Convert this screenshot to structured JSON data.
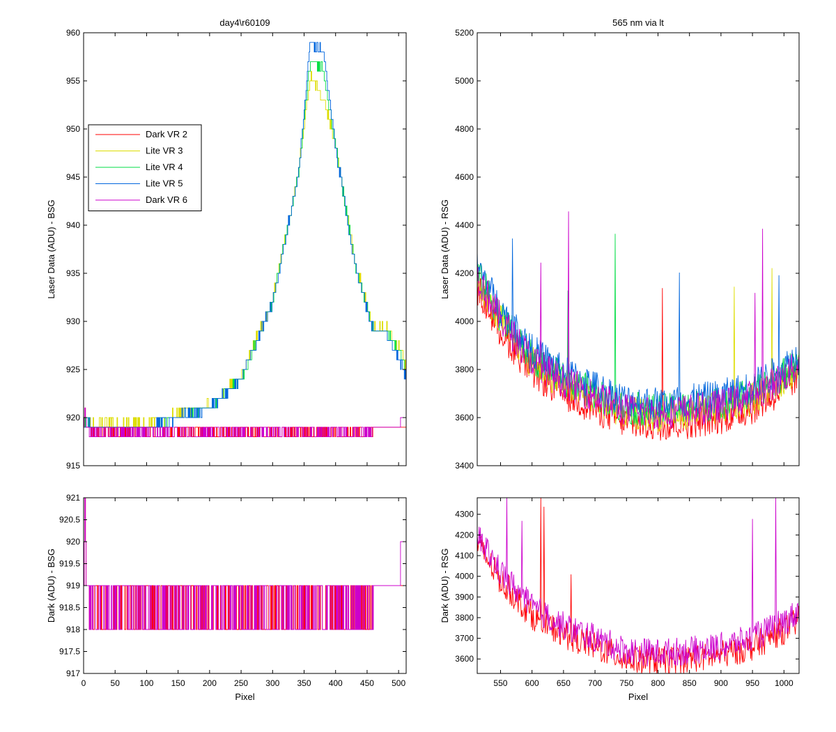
{
  "chart_data": [
    {
      "id": "ax_tl",
      "type": "line",
      "title": "day4\\r60109",
      "xlabel": "",
      "ylabel": "Laser Data (ADU) - BSG",
      "xlim": [
        0,
        512
      ],
      "ylim": [
        915,
        960
      ],
      "xticks": [
        0,
        50,
        100,
        150,
        200,
        250,
        300,
        350,
        400,
        450,
        500
      ],
      "show_xticklabels": false,
      "yticks": [
        915,
        920,
        925,
        930,
        935,
        940,
        945,
        950,
        955,
        960
      ],
      "legend": {
        "position": "upper-left",
        "entries": [
          "Dark VR 2",
          "Lite VR 3",
          "Lite VR 4",
          "Lite VR 5",
          "Dark VR 6"
        ]
      },
      "series": [
        {
          "name": "Dark VR 2",
          "color": "#ff0000",
          "kind": "dark_bsg",
          "x": [
            0,
            2,
            5,
            10,
            50,
            100,
            150,
            200,
            250,
            300,
            350,
            400,
            450,
            500,
            506,
            512
          ],
          "y": [
            919,
            921,
            918.5,
            918.5,
            918.5,
            918.5,
            918.5,
            918.5,
            918.5,
            918.5,
            918.5,
            919,
            919,
            919,
            919,
            919
          ]
        },
        {
          "name": "Lite VR 3",
          "color": "#dddd00",
          "kind": "lite_bsg",
          "offset": 0.3,
          "x": [
            0,
            5,
            10,
            50,
            100,
            150,
            200,
            250,
            300,
            340,
            360,
            380,
            400,
            430,
            460,
            480,
            500,
            512
          ],
          "y": [
            919,
            920,
            919,
            919,
            919,
            920,
            921,
            924,
            932,
            945,
            955,
            953,
            948,
            936,
            929,
            929,
            927,
            925
          ]
        },
        {
          "name": "Lite VR 4",
          "color": "#00dd44",
          "kind": "lite_bsg",
          "offset": 0.1,
          "x": [
            0,
            5,
            10,
            50,
            100,
            150,
            200,
            250,
            300,
            340,
            360,
            380,
            400,
            430,
            460,
            480,
            500,
            512
          ],
          "y": [
            919,
            920,
            919,
            919,
            919,
            920,
            921,
            924,
            932,
            945,
            957,
            956,
            948,
            936,
            929,
            929,
            927,
            925
          ]
        },
        {
          "name": "Lite VR 5",
          "color": "#0066dd",
          "kind": "lite_bsg",
          "offset": 0,
          "x": [
            0,
            5,
            10,
            50,
            100,
            150,
            200,
            250,
            300,
            340,
            360,
            380,
            400,
            430,
            460,
            480,
            500,
            512
          ],
          "y": [
            919,
            920,
            919,
            919,
            919,
            920,
            921,
            924,
            932,
            945,
            959,
            958,
            948,
            936,
            929,
            929,
            926,
            924
          ]
        },
        {
          "name": "Dark VR 6",
          "color": "#cc00cc",
          "kind": "dark_bsg",
          "x": [
            0,
            2,
            5,
            10,
            50,
            100,
            150,
            200,
            250,
            300,
            350,
            400,
            450,
            500,
            506,
            512
          ],
          "y": [
            919,
            921,
            918.5,
            918.5,
            918.5,
            918.5,
            918.5,
            918.5,
            918.5,
            918.5,
            918.5,
            918.8,
            918.8,
            919,
            920,
            920
          ]
        }
      ]
    },
    {
      "id": "ax_tr",
      "type": "line",
      "title": "565 nm via lt",
      "xlabel": "",
      "ylabel": "Laser Data (ADU) - RSG",
      "xlim": [
        513,
        1024
      ],
      "ylim": [
        3400,
        5200
      ],
      "xticks": [
        550,
        600,
        650,
        700,
        750,
        800,
        850,
        900,
        950,
        1000
      ],
      "show_xticklabels": false,
      "yticks": [
        3400,
        3600,
        3800,
        4000,
        4200,
        4400,
        4600,
        4800,
        5000,
        5200
      ],
      "series": [
        {
          "name": "Dark VR 2",
          "color": "#ff0000",
          "kind": "rsg",
          "offset": -60,
          "x": [
            513,
            550,
            600,
            650,
            700,
            750,
            800,
            850,
            900,
            950,
            1000,
            1024
          ],
          "y": [
            4200,
            4020,
            3850,
            3760,
            3700,
            3640,
            3630,
            3640,
            3660,
            3700,
            3780,
            3830
          ]
        },
        {
          "name": "Lite VR 3",
          "color": "#dddd00",
          "kind": "rsg",
          "offset": -20,
          "x": [
            513,
            550,
            600,
            650,
            700,
            750,
            800,
            850,
            900,
            950,
            1000,
            1024
          ],
          "y": [
            4200,
            4020,
            3850,
            3760,
            3700,
            3640,
            3630,
            3640,
            3660,
            3700,
            3780,
            3830
          ]
        },
        {
          "name": "Lite VR 4",
          "color": "#00dd44",
          "kind": "rsg",
          "offset": 0,
          "x": [
            513,
            550,
            600,
            650,
            700,
            750,
            800,
            850,
            900,
            950,
            1000,
            1024
          ],
          "y": [
            4200,
            4020,
            3850,
            3760,
            3700,
            3640,
            3630,
            3640,
            3660,
            3700,
            3780,
            3830
          ]
        },
        {
          "name": "Lite VR 5",
          "color": "#0066dd",
          "kind": "rsg",
          "offset": 30,
          "x": [
            513,
            550,
            600,
            650,
            700,
            750,
            800,
            850,
            900,
            950,
            1000,
            1024
          ],
          "y": [
            4200,
            4020,
            3850,
            3760,
            3700,
            3640,
            3630,
            3640,
            3660,
            3700,
            3780,
            3830
          ]
        },
        {
          "name": "Dark VR 6",
          "color": "#cc00cc",
          "kind": "rsg",
          "offset": -10,
          "x": [
            513,
            550,
            600,
            650,
            700,
            750,
            800,
            850,
            900,
            950,
            1000,
            1024
          ],
          "y": [
            4200,
            4020,
            3850,
            3760,
            3700,
            3640,
            3630,
            3640,
            3660,
            3700,
            3780,
            3830
          ]
        }
      ]
    },
    {
      "id": "ax_bl",
      "type": "line",
      "title": "",
      "xlabel": "Pixel",
      "ylabel": "Dark (ADU) - BSG",
      "xlim": [
        0,
        512
      ],
      "ylim": [
        917,
        921
      ],
      "xticks": [
        0,
        50,
        100,
        150,
        200,
        250,
        300,
        350,
        400,
        450,
        500
      ],
      "show_xticklabels": true,
      "yticks": [
        917,
        917.5,
        918,
        918.5,
        919,
        919.5,
        920,
        920.5,
        921
      ],
      "series": [
        {
          "name": "Dark VR 2",
          "color": "#ff0000",
          "kind": "dark_bsg",
          "x": [
            0,
            2,
            5,
            10,
            50,
            100,
            150,
            200,
            250,
            300,
            350,
            400,
            450,
            500,
            506,
            512
          ],
          "y": [
            919,
            921,
            918.5,
            918.5,
            918.5,
            918.5,
            918.5,
            918.5,
            918.5,
            918.5,
            918.5,
            919,
            919,
            919,
            919,
            919
          ]
        },
        {
          "name": "Dark VR 6",
          "color": "#cc00cc",
          "kind": "dark_bsg",
          "x": [
            0,
            2,
            5,
            10,
            50,
            100,
            150,
            200,
            250,
            300,
            350,
            400,
            450,
            500,
            506,
            512
          ],
          "y": [
            919,
            921,
            918.5,
            918.5,
            918.5,
            918.5,
            918.5,
            918.5,
            918.5,
            918.5,
            918.5,
            918.8,
            918.8,
            919,
            920,
            920
          ]
        }
      ]
    },
    {
      "id": "ax_br",
      "type": "line",
      "title": "",
      "xlabel": "Pixel",
      "ylabel": "Dark (ADU) - RSG",
      "xlim": [
        513,
        1024
      ],
      "ylim": [
        3530,
        4380
      ],
      "xticks": [
        550,
        600,
        650,
        700,
        750,
        800,
        850,
        900,
        950,
        1000
      ],
      "show_xticklabels": true,
      "yticks": [
        3600,
        3700,
        3800,
        3900,
        4000,
        4100,
        4200,
        4300
      ],
      "series": [
        {
          "name": "Dark VR 2",
          "color": "#ff0000",
          "kind": "rsg",
          "offset": -40,
          "x": [
            513,
            550,
            600,
            650,
            700,
            750,
            800,
            850,
            900,
            950,
            1000,
            1024
          ],
          "y": [
            4200,
            4020,
            3850,
            3760,
            3700,
            3640,
            3630,
            3640,
            3660,
            3700,
            3780,
            3830
          ]
        },
        {
          "name": "Dark VR 6",
          "color": "#cc00cc",
          "kind": "rsg",
          "offset": 0,
          "x": [
            513,
            550,
            600,
            650,
            700,
            750,
            800,
            850,
            900,
            950,
            1000,
            1024
          ],
          "y": [
            4200,
            4020,
            3850,
            3760,
            3700,
            3640,
            3630,
            3640,
            3660,
            3700,
            3780,
            3830
          ]
        }
      ]
    }
  ]
}
